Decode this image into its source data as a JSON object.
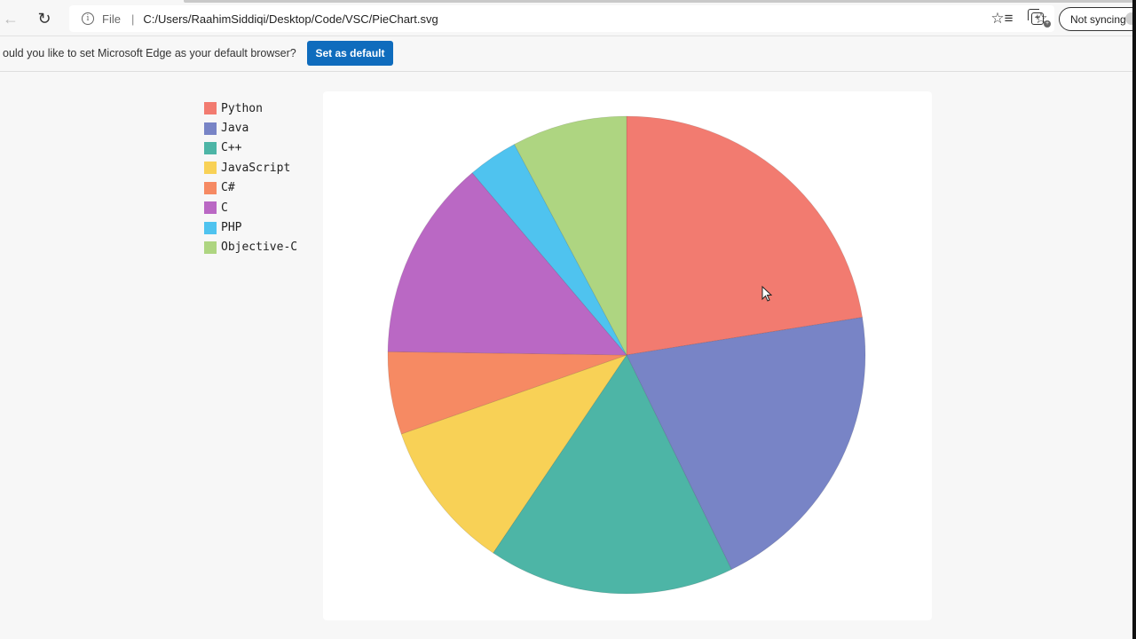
{
  "browser": {
    "address_bar": {
      "scheme_label": "File",
      "separator": "|",
      "url": "C:/Users/RaahimSiddiqi/Desktop/Code/VSC/PieChart.svg"
    },
    "icons": {
      "back": "←",
      "refresh": "↻",
      "info": "i",
      "add_favorite": "☆",
      "favorites": "☆≡",
      "collections": "+"
    },
    "sync_button_label": "Not syncing"
  },
  "infobar": {
    "message": "ould you like to set Microsoft Edge as your default browser?",
    "button_label": "Set as default"
  },
  "chart_data": {
    "type": "pie",
    "title": "",
    "categories": [
      "Python",
      "Java",
      "C++",
      "JavaScript",
      "C#",
      "C",
      "PHP",
      "Objective-C"
    ],
    "values": [
      22.5,
      20.3,
      16.7,
      10.2,
      5.6,
      13.6,
      3.4,
      7.8
    ],
    "colors": [
      "#f27b70",
      "#7884c6",
      "#4db5a6",
      "#f8d156",
      "#f68a63",
      "#ba68c4",
      "#4fc3ef",
      "#aed581"
    ],
    "start_angle_deg": 0,
    "direction": "clockwise",
    "legend_position": "top-left",
    "data_labels": false,
    "center": [
      706,
      400
    ],
    "radius": 269
  }
}
